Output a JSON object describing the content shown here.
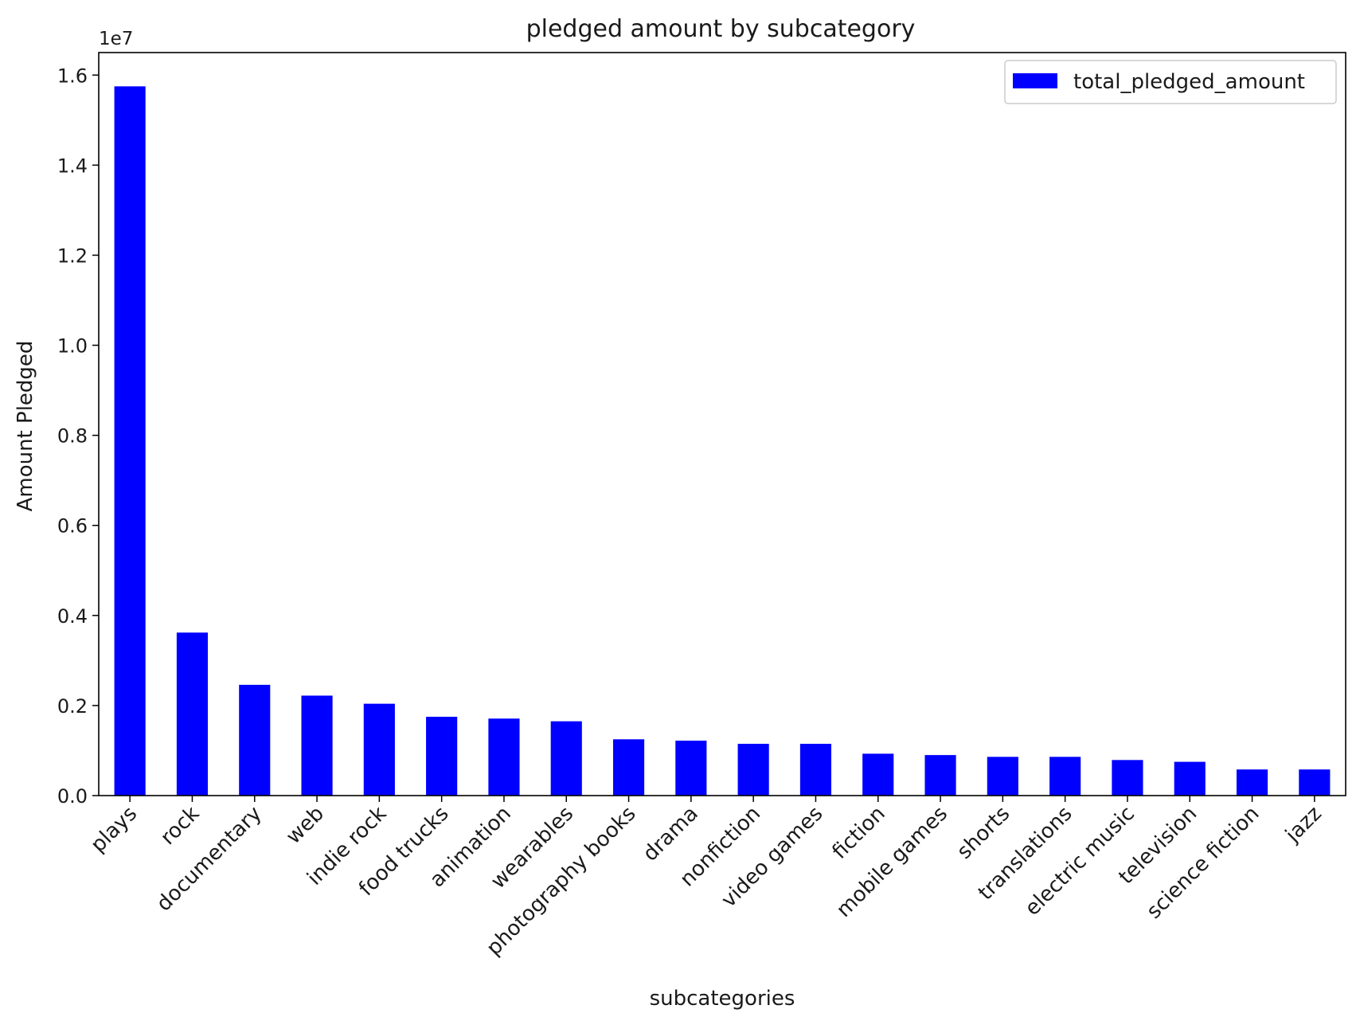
{
  "chart_data": {
    "type": "bar",
    "title": "pledged amount by subcategory",
    "xlabel": "subcategories",
    "ylabel": "Amount Pledged",
    "y_scale_label": "1e7",
    "y_multiplier": 10000000,
    "ylim": [
      0,
      1.65
    ],
    "yticks": [
      0.0,
      0.2,
      0.4,
      0.6,
      0.8,
      1.0,
      1.2,
      1.4,
      1.6
    ],
    "ytick_labels": [
      "0.0",
      "0.2",
      "0.4",
      "0.6",
      "0.8",
      "1.0",
      "1.2",
      "1.4",
      "1.6"
    ],
    "grid": false,
    "legend_position": "top-right",
    "categories": [
      "plays",
      "rock",
      "documentary",
      "web",
      "indie rock",
      "food trucks",
      "animation",
      "wearables",
      "photography books",
      "drama",
      "nonfiction",
      "video games",
      "fiction",
      "mobile games",
      "shorts",
      "translations",
      "electric music",
      "television",
      "science fiction",
      "jazz"
    ],
    "series": [
      {
        "name": "total_pledged_amount",
        "color": "#0000ff",
        "values": [
          15750000,
          3620000,
          2460000,
          2220000,
          2040000,
          1750000,
          1710000,
          1650000,
          1250000,
          1220000,
          1150000,
          1150000,
          930000,
          900000,
          860000,
          860000,
          790000,
          750000,
          580000,
          580000
        ]
      }
    ]
  }
}
